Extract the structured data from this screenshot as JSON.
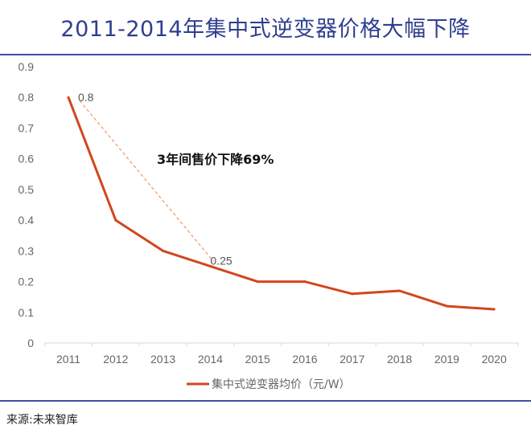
{
  "header": {
    "title": "2011-2014年集中式逆变器价格大幅下降"
  },
  "footer": {
    "source": "来源:未来智库"
  },
  "colors": {
    "title": "#2f3f8f",
    "rule": "#3f4fa0",
    "series": "#d2461e",
    "trend": "#f0a070"
  },
  "chart_data": {
    "type": "line",
    "title": "2011-2014年集中式逆变器价格大幅下降",
    "xlabel": "",
    "ylabel": "",
    "categories": [
      "2011",
      "2012",
      "2013",
      "2014",
      "2015",
      "2016",
      "2017",
      "2018",
      "2019",
      "2020"
    ],
    "series": [
      {
        "name": "集中式逆变器均价（元/W）",
        "values": [
          0.8,
          0.4,
          0.3,
          0.25,
          0.2,
          0.2,
          0.16,
          0.17,
          0.12,
          0.11
        ]
      }
    ],
    "ylim": [
      0,
      0.9
    ],
    "yticks": [
      "0",
      "0.1",
      "0.2",
      "0.3",
      "0.4",
      "0.5",
      "0.6",
      "0.7",
      "0.8",
      "0.9"
    ],
    "data_labels": [
      {
        "category": "2011",
        "value": 0.8,
        "text": "0.8"
      },
      {
        "category": "2014",
        "value": 0.25,
        "text": "0.25"
      }
    ],
    "annotation": {
      "text": "3年间售价下降69%",
      "from": "2011",
      "to": "2014"
    },
    "legend": {
      "position": "bottom",
      "entries": [
        "集中式逆变器均价（元/W）"
      ]
    },
    "grid": false
  }
}
